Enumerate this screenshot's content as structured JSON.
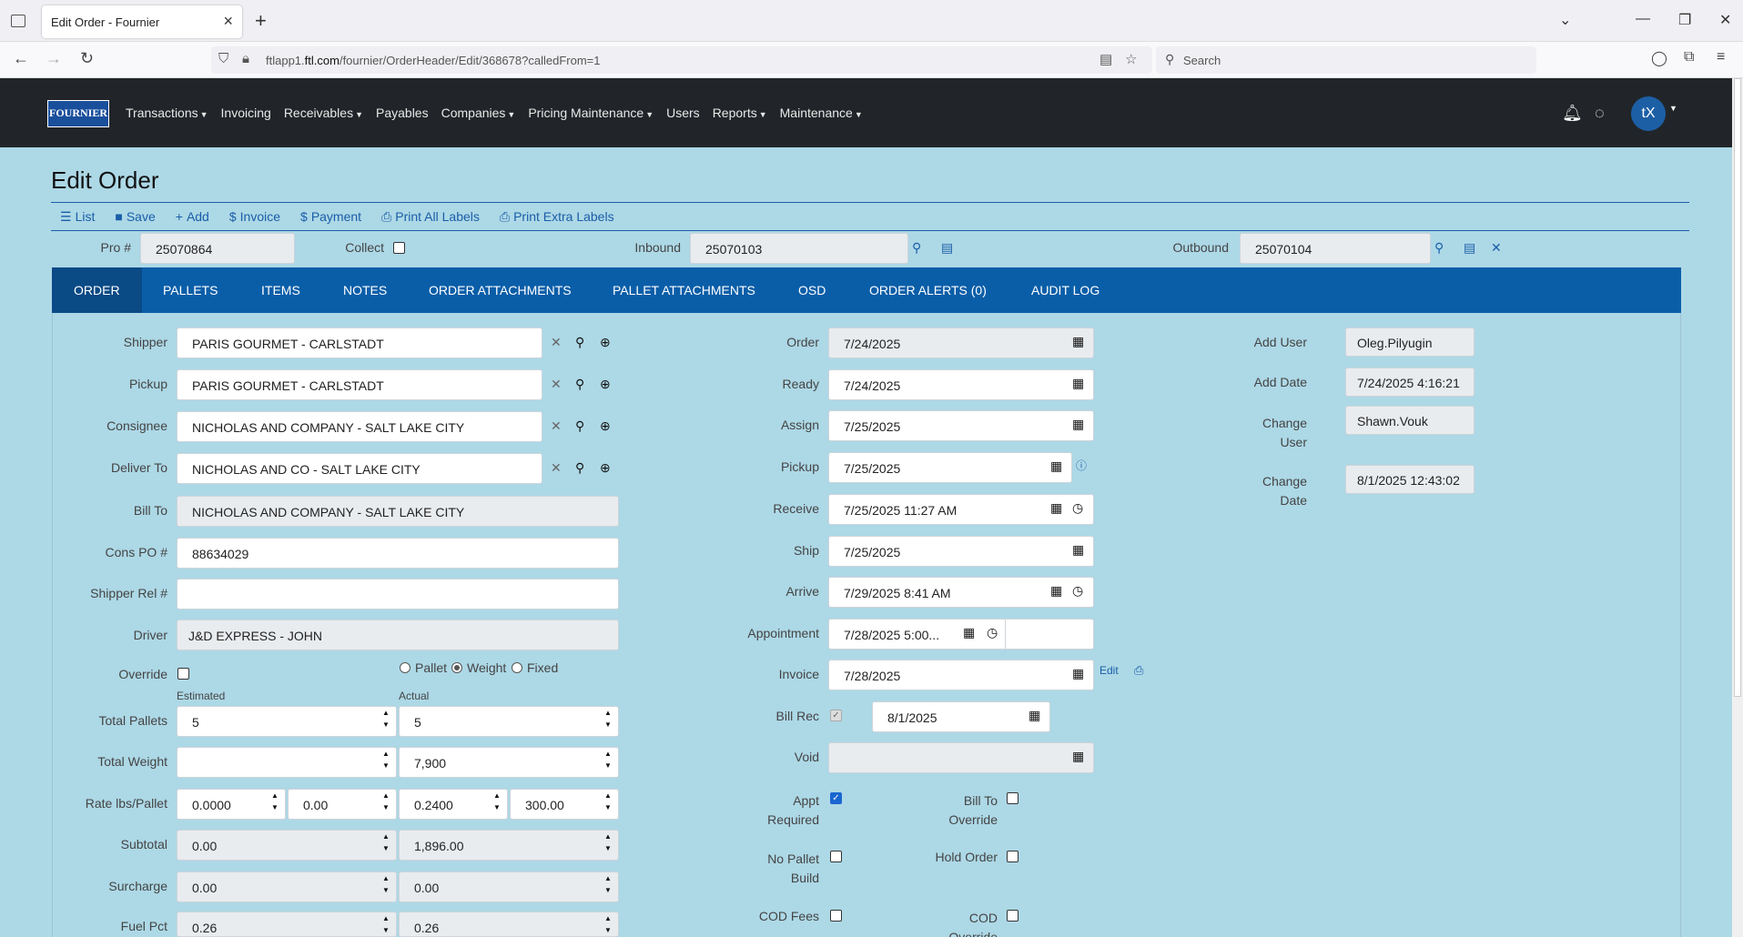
{
  "browser": {
    "tab_title": "Edit Order - Fournier",
    "url_prefix": "ftlapp1.",
    "url_host": "ftl.com",
    "url_path": "/fournier/OrderHeader/Edit/368678?calledFrom=1",
    "search_placeholder": "Search"
  },
  "app": {
    "logo_text": "FOURNIER",
    "menu": [
      {
        "label": "Transactions",
        "dropdown": true
      },
      {
        "label": "Invoicing",
        "dropdown": false
      },
      {
        "label": "Receivables",
        "dropdown": true
      },
      {
        "label": "Payables",
        "dropdown": false
      },
      {
        "label": "Companies",
        "dropdown": true
      },
      {
        "label": "Pricing Maintenance",
        "dropdown": true
      },
      {
        "label": "Users",
        "dropdown": false
      },
      {
        "label": "Reports",
        "dropdown": true
      },
      {
        "label": "Maintenance",
        "dropdown": true
      }
    ],
    "avatar_initials": "tX"
  },
  "page": {
    "title": "Edit Order",
    "toolbar": {
      "list": "List",
      "save": "Save",
      "add": "Add",
      "invoice": "Invoice",
      "payment": "Payment",
      "print_all": "Print All Labels",
      "print_extra": "Print Extra Labels"
    },
    "header": {
      "pro_label": "Pro #",
      "pro_value": "25070864",
      "collect_label": "Collect",
      "inbound_label": "Inbound",
      "inbound_value": "25070103",
      "outbound_label": "Outbound",
      "outbound_value": "25070104"
    },
    "tabs": {
      "order": "ORDER",
      "pallets": "PALLETS",
      "items": "ITEMS",
      "notes": "NOTES",
      "order_attachments": "ORDER ATTACHMENTS",
      "pallet_attachments": "PALLET ATTACHMENTS",
      "osd": "OSD",
      "order_alerts": "ORDER ALERTS (0)",
      "audit_log": "AUDIT LOG"
    }
  },
  "left": {
    "shipper_label": "Shipper",
    "shipper": "PARIS GOURMET - CARLSTADT",
    "pickup_label": "Pickup",
    "pickup": "PARIS GOURMET - CARLSTADT",
    "consignee_label": "Consignee",
    "consignee": "NICHOLAS AND COMPANY - SALT LAKE CITY",
    "deliver_label": "Deliver To",
    "deliver": "NICHOLAS AND CO - SALT LAKE CITY",
    "billto_label": "Bill To",
    "billto": "NICHOLAS AND COMPANY - SALT LAKE CITY",
    "conspo_label": "Cons PO #",
    "conspo": "88634029",
    "shiprel_label": "Shipper Rel #",
    "shiprel": "",
    "driver_label": "Driver",
    "driver": "J&D EXPRESS - JOHN",
    "override_label": "Override",
    "radio_pallet": "Pallet",
    "radio_weight": "Weight",
    "radio_fixed": "Fixed",
    "estimated_label": "Estimated",
    "actual_label": "Actual",
    "pallets_label": "Total Pallets",
    "pallets_est": "5",
    "pallets_act": "5",
    "weight_label": "Total Weight",
    "weight_est": "",
    "weight_act": "7,900",
    "rate_label": "Rate lbs/Pallet",
    "rate1": "0.0000",
    "rate2": "0.00",
    "rate3": "0.2400",
    "rate4": "300.00",
    "subtotal_label": "Subtotal",
    "subtotal_est": "0.00",
    "subtotal_act": "1,896.00",
    "surcharge_label": "Surcharge",
    "surcharge_est": "0.00",
    "surcharge_act": "0.00",
    "fuel_label": "Fuel Pct",
    "fuel_est": "0.26",
    "fuel_act": "0.26"
  },
  "middle": {
    "order_label": "Order",
    "order": "7/24/2025",
    "ready_label": "Ready",
    "ready": "7/24/2025",
    "assign_label": "Assign",
    "assign": "7/25/2025",
    "pickup_label": "Pickup",
    "pickup": "7/25/2025",
    "receive_label": "Receive",
    "receive": "7/25/2025 11:27 AM",
    "ship_label": "Ship",
    "ship": "7/25/2025",
    "arrive_label": "Arrive",
    "arrive": "7/29/2025 8:41 AM",
    "appointment_label": "Appointment",
    "appointment": "7/28/2025 5:00...",
    "invoice_label": "Invoice",
    "invoice": "7/28/2025",
    "invoice_edit": "Edit",
    "billrec_label": "Bill Rec",
    "billrec": "8/1/2025",
    "void_label": "Void",
    "void": "",
    "appt_req_label1": "Appt",
    "appt_req_label2": "Required",
    "billto_override_label1": "Bill To",
    "billto_override_label2": "Override",
    "no_pallet_label1": "No Pallet",
    "no_pallet_label2": "Build",
    "hold_order_label": "Hold Order",
    "cod_fees_label": "COD Fees",
    "cod_override_label1": "COD",
    "cod_override_label2": "Override"
  },
  "right": {
    "add_user_label": "Add User",
    "add_user": "Oleg.Pilyugin",
    "add_date_label": "Add Date",
    "add_date": "7/24/2025 4:16:21",
    "change_user_label1": "Change",
    "change_user_label2": "User",
    "change_user": "Shawn.Vouk",
    "change_date_label1": "Change",
    "change_date_label2": "Date",
    "change_date": "8/1/2025 12:43:02"
  }
}
